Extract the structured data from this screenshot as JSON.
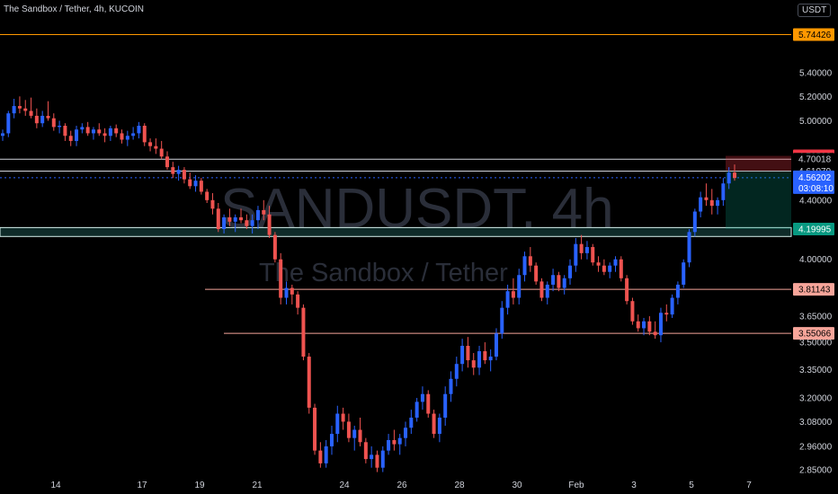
{
  "header": {
    "title": "The Sandbox / Tether, 4h, KUCOIN",
    "currency": "USDT"
  },
  "watermark": {
    "symbol": "SANDUSDT, 4h",
    "name": "The Sandbox / Tether"
  },
  "colors": {
    "background": "#000000",
    "up": "#2962ff",
    "down": "#ef5350",
    "text": "#d1d4dc",
    "orange": "#ff9800",
    "salmon": "#f7a59a",
    "zone": "#d8f3ef",
    "green_tag": "#089981",
    "red_tag": "#f23645",
    "blue_tag": "#2962ff"
  },
  "price_tags": {
    "current_price": "4.56202",
    "countdown": "03:08:10"
  },
  "chart_data": {
    "type": "candlestick",
    "title": "The Sandbox / Tether, 4h, KUCOIN",
    "ylim": [
      2.83,
      5.9
    ],
    "y_scale": "log",
    "grid": false,
    "y_ticks": [
      "5.40000",
      "5.20000",
      "5.00000",
      "4.40000",
      "4.00000",
      "3.65000",
      "3.50000",
      "3.35000",
      "3.20000",
      "3.08000",
      "2.96000",
      "2.85000"
    ],
    "x_ticks": [
      "14",
      "17",
      "19",
      "21",
      "24",
      "26",
      "28",
      "30",
      "Feb",
      "3",
      "5",
      "7"
    ],
    "horizontal_levels": [
      {
        "value": 5.74426,
        "label": "5.74426",
        "color": "#ff9800"
      },
      {
        "value": 4.72503,
        "label": "4.72503",
        "color": "#f23645"
      },
      {
        "value": 4.70018,
        "label": "4.70018",
        "color": "#d1d4dc"
      },
      {
        "value": 4.61079,
        "label": "4.61079",
        "color": "#d1d4dc"
      },
      {
        "value": 4.56202,
        "label": "4.56202",
        "color": "#2962ff"
      },
      {
        "value": 4.19995,
        "label": "4.19995",
        "color": "#089981"
      },
      {
        "value": 3.81143,
        "label": "3.81143",
        "color": "#f7a59a"
      },
      {
        "value": 3.55066,
        "label": "3.55066",
        "color": "#f7a59a"
      }
    ],
    "zone": {
      "top": 4.21,
      "bottom": 4.15
    },
    "position": {
      "entry": 4.61079,
      "stop": 4.72503,
      "target": 4.19995
    },
    "ohlc": [
      [
        4.88,
        4.93,
        4.84,
        4.9
      ],
      [
        4.9,
        5.08,
        4.87,
        5.06
      ],
      [
        5.06,
        5.18,
        5.02,
        5.12
      ],
      [
        5.12,
        5.2,
        5.06,
        5.1
      ],
      [
        5.1,
        5.17,
        5.04,
        5.08
      ],
      [
        5.08,
        5.19,
        5.02,
        5.04
      ],
      [
        5.04,
        5.1,
        4.94,
        4.98
      ],
      [
        4.98,
        5.08,
        4.95,
        5.04
      ],
      [
        5.04,
        5.16,
        5.0,
        5.02
      ],
      [
        5.02,
        5.06,
        4.92,
        4.95
      ],
      [
        4.95,
        5.0,
        4.9,
        4.96
      ],
      [
        4.96,
        4.98,
        4.84,
        4.88
      ],
      [
        4.88,
        4.92,
        4.8,
        4.84
      ],
      [
        4.84,
        4.96,
        4.8,
        4.93
      ],
      [
        4.93,
        4.98,
        4.9,
        4.95
      ],
      [
        4.95,
        4.99,
        4.88,
        4.9
      ],
      [
        4.9,
        4.95,
        4.85,
        4.93
      ],
      [
        4.93,
        4.98,
        4.88,
        4.9
      ],
      [
        4.9,
        4.94,
        4.83,
        4.88
      ],
      [
        4.88,
        4.96,
        4.84,
        4.94
      ],
      [
        4.94,
        4.97,
        4.87,
        4.9
      ],
      [
        4.9,
        4.93,
        4.82,
        4.85
      ],
      [
        4.85,
        4.92,
        4.8,
        4.88
      ],
      [
        4.88,
        4.95,
        4.85,
        4.9
      ],
      [
        4.9,
        4.99,
        4.86,
        4.96
      ],
      [
        4.96,
        4.98,
        4.8,
        4.83
      ],
      [
        4.83,
        4.86,
        4.76,
        4.8
      ],
      [
        4.8,
        4.86,
        4.74,
        4.78
      ],
      [
        4.78,
        4.84,
        4.7,
        4.72
      ],
      [
        4.72,
        4.76,
        4.62,
        4.64
      ],
      [
        4.64,
        4.68,
        4.56,
        4.59
      ],
      [
        4.59,
        4.65,
        4.54,
        4.62
      ],
      [
        4.62,
        4.64,
        4.52,
        4.55
      ],
      [
        4.55,
        4.6,
        4.48,
        4.5
      ],
      [
        4.5,
        4.58,
        4.46,
        4.54
      ],
      [
        4.54,
        4.56,
        4.44,
        4.46
      ],
      [
        4.46,
        4.48,
        4.38,
        4.4
      ],
      [
        4.4,
        4.45,
        4.3,
        4.34
      ],
      [
        4.34,
        4.38,
        4.18,
        4.2
      ],
      [
        4.2,
        4.3,
        4.17,
        4.28
      ],
      [
        4.28,
        4.34,
        4.22,
        4.25
      ],
      [
        4.25,
        4.3,
        4.18,
        4.28
      ],
      [
        4.28,
        4.34,
        4.24,
        4.26
      ],
      [
        4.26,
        4.3,
        4.2,
        4.22
      ],
      [
        4.22,
        4.3,
        4.17,
        4.26
      ],
      [
        4.26,
        4.36,
        4.2,
        4.33
      ],
      [
        4.33,
        4.4,
        4.26,
        4.3
      ],
      [
        4.3,
        4.36,
        4.14,
        4.16
      ],
      [
        4.16,
        4.18,
        3.98,
        4.0
      ],
      [
        4.0,
        4.04,
        3.72,
        3.76
      ],
      [
        3.76,
        3.86,
        3.72,
        3.82
      ],
      [
        3.82,
        3.84,
        3.72,
        3.78
      ],
      [
        3.78,
        3.8,
        3.66,
        3.7
      ],
      [
        3.7,
        3.72,
        3.4,
        3.42
      ],
      [
        3.42,
        3.44,
        3.12,
        3.15
      ],
      [
        3.15,
        3.17,
        2.92,
        2.94
      ],
      [
        2.94,
        2.98,
        2.86,
        2.88
      ],
      [
        2.88,
        2.99,
        2.86,
        2.96
      ],
      [
        2.96,
        3.06,
        2.92,
        3.02
      ],
      [
        3.02,
        3.16,
        2.98,
        3.12
      ],
      [
        3.12,
        3.15,
        3.04,
        3.08
      ],
      [
        3.08,
        3.12,
        2.98,
        3.0
      ],
      [
        3.0,
        3.06,
        2.94,
        3.04
      ],
      [
        3.04,
        3.1,
        2.96,
        2.98
      ],
      [
        2.98,
        3.0,
        2.88,
        2.9
      ],
      [
        2.9,
        2.96,
        2.86,
        2.92
      ],
      [
        2.92,
        2.94,
        2.84,
        2.86
      ],
      [
        2.86,
        2.96,
        2.84,
        2.94
      ],
      [
        2.94,
        3.02,
        2.92,
        2.99
      ],
      [
        2.99,
        3.04,
        2.94,
        2.97
      ],
      [
        2.97,
        3.02,
        2.92,
        3.0
      ],
      [
        3.0,
        3.08,
        2.96,
        3.05
      ],
      [
        3.05,
        3.14,
        3.02,
        3.1
      ],
      [
        3.1,
        3.2,
        3.08,
        3.18
      ],
      [
        3.18,
        3.26,
        3.14,
        3.22
      ],
      [
        3.22,
        3.24,
        3.1,
        3.12
      ],
      [
        3.12,
        3.14,
        3.0,
        3.02
      ],
      [
        3.02,
        3.12,
        2.98,
        3.1
      ],
      [
        3.1,
        3.26,
        3.06,
        3.22
      ],
      [
        3.22,
        3.34,
        3.18,
        3.3
      ],
      [
        3.3,
        3.42,
        3.26,
        3.38
      ],
      [
        3.38,
        3.52,
        3.34,
        3.48
      ],
      [
        3.48,
        3.53,
        3.36,
        3.4
      ],
      [
        3.4,
        3.44,
        3.32,
        3.36
      ],
      [
        3.36,
        3.48,
        3.32,
        3.45
      ],
      [
        3.45,
        3.5,
        3.38,
        3.4
      ],
      [
        3.4,
        3.46,
        3.34,
        3.42
      ],
      [
        3.42,
        3.58,
        3.4,
        3.55
      ],
      [
        3.55,
        3.74,
        3.52,
        3.7
      ],
      [
        3.7,
        3.84,
        3.66,
        3.8
      ],
      [
        3.8,
        3.88,
        3.72,
        3.76
      ],
      [
        3.76,
        3.94,
        3.72,
        3.9
      ],
      [
        3.9,
        4.05,
        3.86,
        4.02
      ],
      [
        4.02,
        4.08,
        3.92,
        3.96
      ],
      [
        3.96,
        3.98,
        3.84,
        3.86
      ],
      [
        3.86,
        3.88,
        3.74,
        3.76
      ],
      [
        3.76,
        3.86,
        3.72,
        3.84
      ],
      [
        3.84,
        3.94,
        3.8,
        3.9
      ],
      [
        3.9,
        3.92,
        3.8,
        3.82
      ],
      [
        3.82,
        3.9,
        3.78,
        3.88
      ],
      [
        3.88,
        4.0,
        3.84,
        3.96
      ],
      [
        3.96,
        4.14,
        3.92,
        4.1
      ],
      [
        4.1,
        4.16,
        4.0,
        4.04
      ],
      [
        4.04,
        4.12,
        4.0,
        4.08
      ],
      [
        4.08,
        4.1,
        3.96,
        3.98
      ],
      [
        3.98,
        4.02,
        3.92,
        3.96
      ],
      [
        3.96,
        4.0,
        3.9,
        3.92
      ],
      [
        3.92,
        3.98,
        3.88,
        3.96
      ],
      [
        3.96,
        4.02,
        3.92,
        4.0
      ],
      [
        4.0,
        4.02,
        3.86,
        3.88
      ],
      [
        3.88,
        3.9,
        3.72,
        3.74
      ],
      [
        3.74,
        3.76,
        3.6,
        3.62
      ],
      [
        3.62,
        3.66,
        3.56,
        3.58
      ],
      [
        3.58,
        3.64,
        3.54,
        3.62
      ],
      [
        3.62,
        3.65,
        3.54,
        3.56
      ],
      [
        3.56,
        3.62,
        3.52,
        3.54
      ],
      [
        3.54,
        3.7,
        3.5,
        3.67
      ],
      [
        3.67,
        3.72,
        3.62,
        3.66
      ],
      [
        3.66,
        3.78,
        3.64,
        3.76
      ],
      [
        3.76,
        3.86,
        3.72,
        3.84
      ],
      [
        3.84,
        4.0,
        3.82,
        3.98
      ],
      [
        3.98,
        4.2,
        3.95,
        4.18
      ],
      [
        4.18,
        4.34,
        4.15,
        4.32
      ],
      [
        4.32,
        4.46,
        4.28,
        4.42
      ],
      [
        4.42,
        4.52,
        4.36,
        4.4
      ],
      [
        4.4,
        4.48,
        4.3,
        4.36
      ],
      [
        4.36,
        4.42,
        4.3,
        4.4
      ],
      [
        4.4,
        4.56,
        4.36,
        4.52
      ],
      [
        4.52,
        4.64,
        4.48,
        4.6
      ],
      [
        4.6,
        4.66,
        4.54,
        4.56
      ]
    ]
  }
}
